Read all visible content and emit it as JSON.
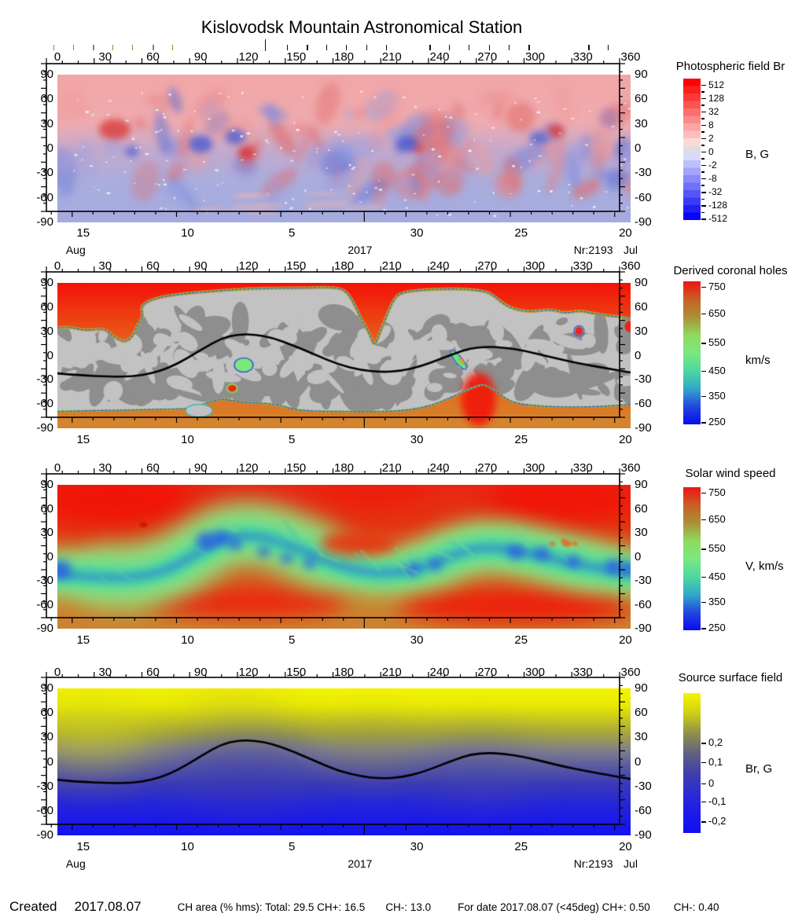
{
  "title": "Kislovodsk Mountain Astronomical Station",
  "footer": {
    "created_label": "Created",
    "created_date": "2017.08.07",
    "ch_area": "CH area (% hms): Total: 29.5 CH+: 16.5",
    "ch_minus": "CH-: 13.0",
    "for_date": "For date 2017.08.07 (<45deg) CH+: 0.50",
    "ch_minus2": "CH-: 0.40"
  },
  "chart_data": {
    "type": "heatmap",
    "description": "Four synoptic solar maps for Carrington rotation Nr:2193 (Jul-Aug 2017): photospheric magnetic field, derived coronal holes, solar wind speed, source surface field",
    "x_axis": {
      "ticks": [
        0,
        30,
        60,
        90,
        120,
        150,
        180,
        210,
        240,
        270,
        300,
        330,
        360
      ],
      "minor_step_deg": 10
    },
    "y_axis": {
      "ticks": [
        90,
        60,
        30,
        0,
        -30,
        -60,
        -90
      ],
      "minor_step_deg": 10,
      "range": [
        -90,
        90
      ]
    },
    "time_axis": {
      "day_labels": [
        {
          "text": "15",
          "f": 0.045
        },
        {
          "text": "10",
          "f": 0.227
        },
        {
          "text": "5",
          "f": 0.409
        },
        {
          "text": "30",
          "f": 0.627
        },
        {
          "text": "25",
          "f": 0.809
        },
        {
          "text": "20",
          "f": 0.991
        }
      ],
      "day_step_f": 0.0364,
      "month_boundary_f": 0.554,
      "month_row": [
        {
          "text": "Aug",
          "f": 0.032
        },
        {
          "text": "2017",
          "f": 0.528
        },
        {
          "text": "Nr:2193",
          "f": 0.935
        },
        {
          "text": "Jul",
          "f": 1.0
        }
      ]
    },
    "observation_ticks": {
      "olive_f": [
        -0.007,
        0.027,
        0.062,
        0.096,
        0.13,
        0.166,
        0.2
      ],
      "black_f": [
        0.4,
        0.435,
        0.469,
        0.503,
        0.539,
        0.573,
        0.649,
        0.683,
        0.717,
        0.753,
        0.787,
        0.822,
        0.926,
        0.96
      ],
      "tall_f": 0.362,
      "olive_color": "#8f8f1e",
      "black_color": "#111111"
    },
    "neutral_line": [
      [
        0,
        -22
      ],
      [
        0.04,
        -24.5
      ],
      [
        0.09,
        -26
      ],
      [
        0.13,
        -26
      ],
      [
        0.165,
        -22
      ],
      [
        0.195,
        -15
      ],
      [
        0.225,
        -4
      ],
      [
        0.255,
        9
      ],
      [
        0.285,
        21
      ],
      [
        0.315,
        26.5
      ],
      [
        0.345,
        26
      ],
      [
        0.375,
        22
      ],
      [
        0.41,
        13
      ],
      [
        0.45,
        1
      ],
      [
        0.49,
        -11
      ],
      [
        0.53,
        -18
      ],
      [
        0.565,
        -20.5
      ],
      [
        0.6,
        -19
      ],
      [
        0.635,
        -13
      ],
      [
        0.665,
        -5
      ],
      [
        0.695,
        3
      ],
      [
        0.72,
        9
      ],
      [
        0.75,
        11
      ],
      [
        0.78,
        10
      ],
      [
        0.815,
        6
      ],
      [
        0.85,
        0
      ],
      [
        0.885,
        -6
      ],
      [
        0.92,
        -11
      ],
      [
        0.96,
        -16
      ],
      [
        1,
        -21
      ]
    ],
    "panels": [
      {
        "name": "photospheric-field",
        "title": "Photospheric field Br",
        "unit": "B, G",
        "colorbar": {
          "style": "stepped-diverging",
          "tick_labels": [
            "512",
            "128",
            "32",
            "8",
            "2",
            "0",
            "-2",
            "-8",
            "-32",
            "-128",
            "-512"
          ],
          "pos_color": "#fb0404",
          "pos_light": "#fdd9d9",
          "neutral_color": "#dedede",
          "neg_light": "#d9d9fd",
          "neg_color": "#0606f5"
        }
      },
      {
        "name": "coronal-holes",
        "title": "Derived coronal holes",
        "unit": "km/s",
        "colorbar": {
          "style": "gradient",
          "tick_labels": [
            "750",
            "650",
            "550",
            "450",
            "350",
            "250"
          ],
          "tick_f": [
            0.038,
            0.225,
            0.43,
            0.625,
            0.8,
            0.985
          ],
          "gradient": [
            "#ee1414",
            "#c85f24",
            "#ab9038",
            "#8fd95e",
            "#7ce87f",
            "#4cd8a0",
            "#32a8c8",
            "#2048e0",
            "#0a0af2"
          ]
        }
      },
      {
        "name": "solar-wind-speed",
        "title": "Solar wind speed",
        "unit": "V, km/s",
        "colorbar": {
          "style": "gradient",
          "tick_labels": [
            "750",
            "650",
            "550",
            "450",
            "350",
            "250"
          ],
          "tick_f": [
            0.038,
            0.225,
            0.43,
            0.625,
            0.8,
            0.985
          ],
          "gradient": [
            "#ee1414",
            "#c85f24",
            "#ab9038",
            "#8fd95e",
            "#7ce87f",
            "#4cd8a0",
            "#32a8c8",
            "#2048e0",
            "#0a0af2"
          ]
        }
      },
      {
        "name": "source-surface-field",
        "title": "Source surface field",
        "unit": "Br, G",
        "colorbar": {
          "style": "gradient",
          "tick_labels": [
            "0,2",
            "0,1",
            "0",
            "-0,1",
            "-0,2"
          ],
          "tick_f": [
            0.354,
            0.494,
            0.646,
            0.775,
            0.916
          ],
          "gradient": [
            "#f6f600",
            "#cfcf14",
            "#90904a",
            "#61617e",
            "#4040ab",
            "#2c2cd2",
            "#1b1be8",
            "#0f0ff2"
          ]
        }
      }
    ],
    "map_colors": {
      "ch_quiet_light": "#c2c2c2",
      "ch_quiet_dark": "#8e8e8e",
      "ch_fast_red": "#f31208",
      "ch_fast_orange": "#e8671c",
      "ch_south_bottom": "#d2882f",
      "ch_outline_green": "#9fd434",
      "ch_outline_blue": "#3a5fd0"
    }
  }
}
